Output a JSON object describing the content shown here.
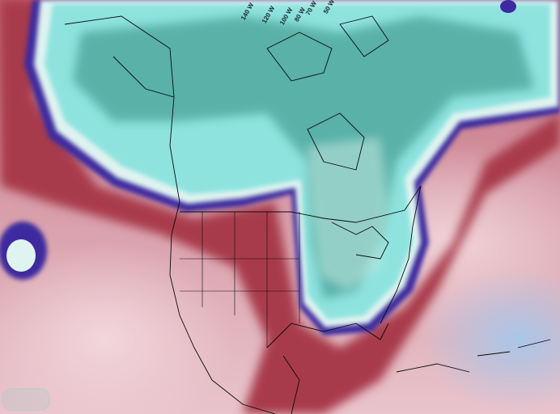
{
  "map": {
    "type": "weather model temperature anomaly map",
    "region": "North America",
    "longitude_labels": [
      "140 W",
      "120 W",
      "100 W",
      "80 W",
      "70 W",
      "50 W"
    ],
    "colors": {
      "cold_core": "#1f6b5e",
      "cold": "#7fe0dc",
      "front": "#3a2a9a",
      "warm": "#b8404f",
      "warm_light": "#f0d0d6",
      "ocean_cool": "#a9c6e8"
    }
  }
}
